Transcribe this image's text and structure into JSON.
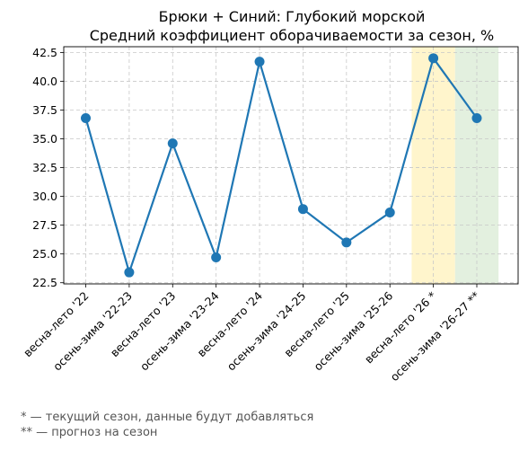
{
  "chart_data": {
    "type": "line",
    "title": "Брюки + Синий: Глубокий морской",
    "subtitle": "Средний коэффициент оборачиваемости за сезон, %",
    "xlabel": "",
    "ylabel": "",
    "categories": [
      "весна-лето '22",
      "осень-зима '22-23",
      "весна-лето '23",
      "осень-зима '23-24",
      "весна-лето '24",
      "осень-зима '24-25",
      "весна-лето '25",
      "осень-зима '25-26",
      "весна-лето '26 *",
      "осень-зима '26-27 **"
    ],
    "series": [
      {
        "values": [
          36.8,
          23.4,
          34.6,
          24.7,
          41.7,
          28.9,
          26.0,
          28.6,
          42.0,
          36.8
        ]
      }
    ],
    "ylim": [
      22.4,
      43.0
    ],
    "yticks": [
      "22.5",
      "25.0",
      "27.5",
      "30.0",
      "32.5",
      "35.0",
      "37.5",
      "40.0",
      "42.5"
    ],
    "grid": true,
    "highlight_bands": [
      {
        "category_index": 8,
        "color": "#fff5cc"
      },
      {
        "category_index": 9,
        "color": "#e3f0df"
      }
    ],
    "line_color": "#1f77b4"
  },
  "footnotes": [
    "* — текущий сезон, данные будут добавляться",
    "** — прогноз на сезон"
  ]
}
